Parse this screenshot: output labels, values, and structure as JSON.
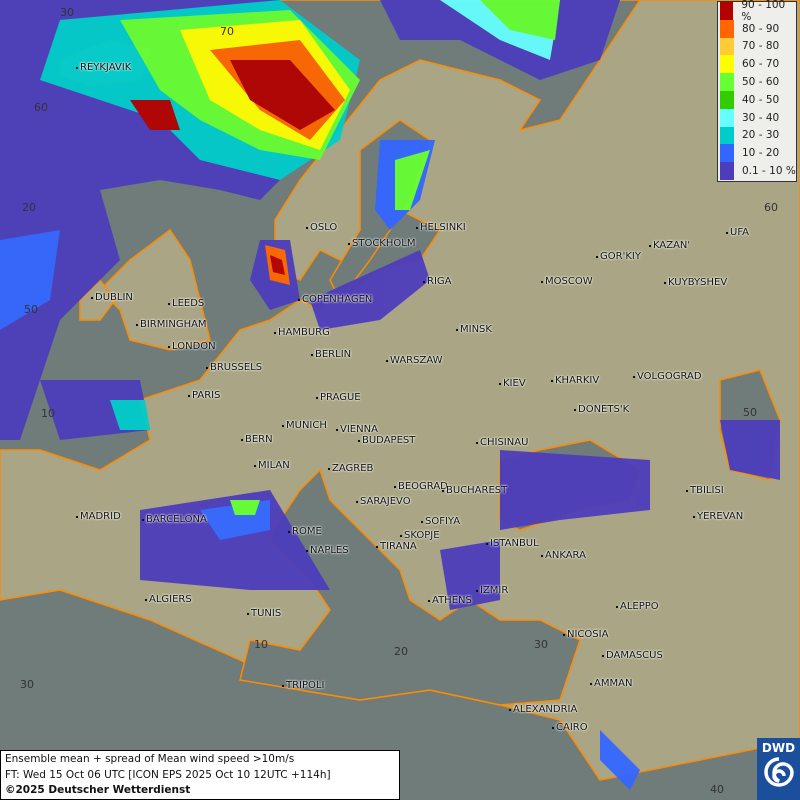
{
  "legend": {
    "items": [
      {
        "label": "90 - 100 %",
        "color": "#b30000"
      },
      {
        "label": "80 - 90",
        "color": "#ff6600"
      },
      {
        "label": "70 - 80",
        "color": "#ffcc33"
      },
      {
        "label": "60 - 70",
        "color": "#ffff00"
      },
      {
        "label": "50 - 60",
        "color": "#66ff33"
      },
      {
        "label": "40 - 50",
        "color": "#33cc00"
      },
      {
        "label": "30 - 40",
        "color": "#66ffff"
      },
      {
        "label": "20 - 30",
        "color": "#00cccc"
      },
      {
        "label": "10 - 20",
        "color": "#3366ff"
      },
      {
        "label": "0.1 - 10 %",
        "color": "#4d3dbb"
      }
    ]
  },
  "info": {
    "title": "Ensemble mean + spread of Mean wind speed >10m/s",
    "forecast": "FT: Wed 15 Oct 06 UTC [ICON EPS 2025 Oct 10 12UTC +114h]",
    "copyright": "©2025 Deutscher Wetterdienst"
  },
  "logo": {
    "text": "DWD"
  },
  "colors": {
    "sea": "#6f7c7a",
    "land": "#a9a585",
    "coast": "#ff8c00"
  },
  "grid_labels": [
    "30",
    "70",
    "60",
    "20",
    "50",
    "10",
    "60",
    "50",
    "40",
    "30",
    "20",
    "10",
    "30"
  ],
  "cities": [
    "REYKJAVIK",
    "OSLO",
    "STOCKHOLM",
    "HELSINKI",
    "DUBLIN",
    "LEEDS",
    "BIRMINGHAM",
    "LONDON",
    "COPENHAGEN",
    "RIGA",
    "MOSCOW",
    "GOR'KIY",
    "KAZAN'",
    "UFA",
    "KUYBYSHEV",
    "HAMBURG",
    "BERLIN",
    "MINSK",
    "WARSZAW",
    "BRUSSELS",
    "PARIS",
    "PRAGUE",
    "KIEV",
    "KHARKIV",
    "VOLGOGRAD",
    "DONETS'K",
    "MUNICH",
    "VIENNA",
    "BERN",
    "BUDAPEST",
    "CHISINAU",
    "MILAN",
    "ZAGREB",
    "BEOGRAD",
    "BUCHAREST",
    "TBILISI",
    "SARAJEVO",
    "MADRID",
    "BARCELONA",
    "YEREVAN",
    "SOFIYA",
    "ROME",
    "SKOPJE",
    "ISTANBUL",
    "NAPLES",
    "TIRANA",
    "ANKARA",
    "IZMIR",
    "ATHENS",
    "ALGIERS",
    "TUNIS",
    "ALEPPO",
    "NICOSIA",
    "DAMASCUS",
    "AMMAN",
    "TRIPOLI",
    "ALEXANDRIA",
    "CAIRO"
  ]
}
